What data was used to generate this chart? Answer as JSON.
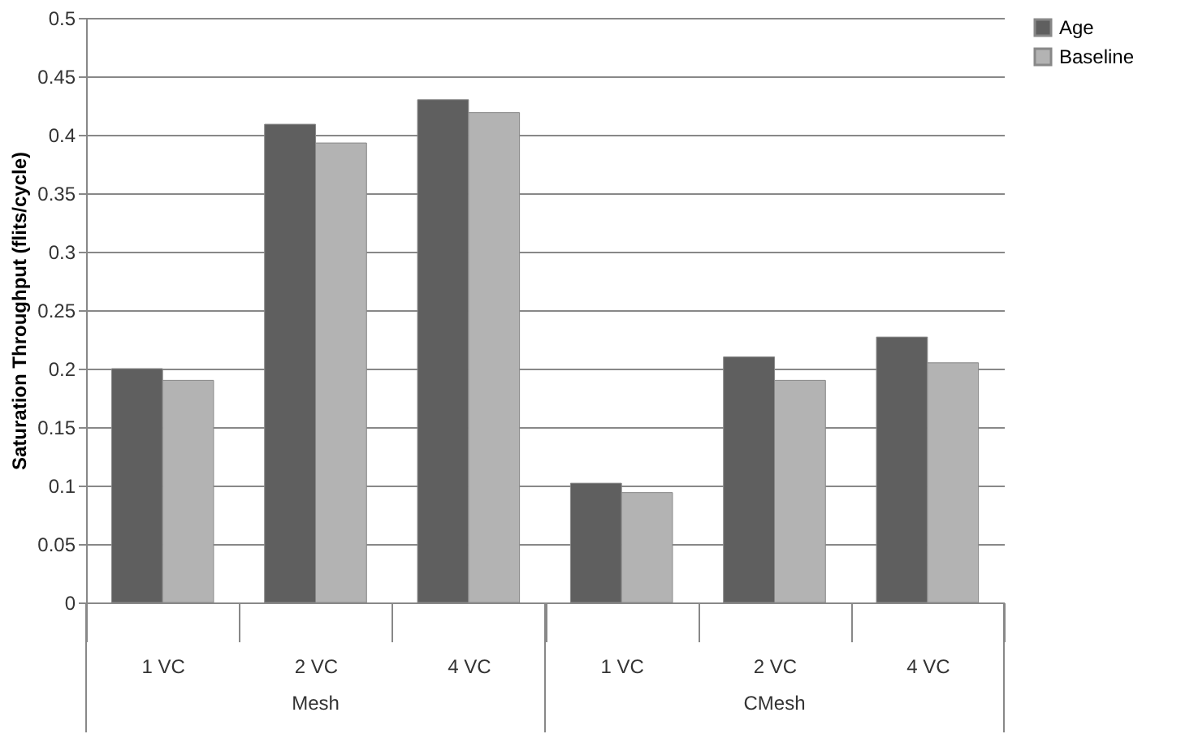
{
  "chart_data": {
    "type": "bar",
    "ylabel": "Saturation Throughput (flits/cycle)",
    "categories": [
      "1 VC",
      "2 VC",
      "4 VC",
      "1 VC",
      "2 VC",
      "4 VC"
    ],
    "series": [
      {
        "name": "Age",
        "color": "#5f5f5f",
        "values": [
          0.2,
          0.409,
          0.43,
          0.102,
          0.21,
          0.227
        ]
      },
      {
        "name": "Baseline",
        "color": "#b3b3b3",
        "values": [
          0.19,
          0.393,
          0.419,
          0.094,
          0.19,
          0.205
        ]
      }
    ],
    "ylim": [
      0,
      0.5
    ],
    "yticks": [
      0,
      0.05,
      0.1,
      0.15,
      0.2,
      0.25,
      0.3,
      0.35,
      0.4,
      0.45,
      0.5
    ],
    "annotations": [
      "Mesh",
      "CMesh"
    ],
    "grid": "y",
    "legend": "right"
  }
}
